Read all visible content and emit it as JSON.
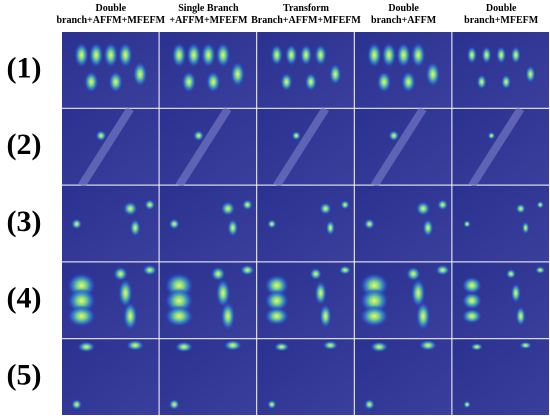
{
  "figure": {
    "columns": [
      [
        "Double",
        "branch+AFFM+MFEFM"
      ],
      [
        "Single Branch",
        "+AFFM+MFEFM"
      ],
      [
        "Transform",
        "Branch+AFFM+MFEFM"
      ],
      [
        "Double",
        "branch+AFFM"
      ],
      [
        "Double",
        "branch+MFEFM"
      ]
    ],
    "rows": [
      "(1)",
      "(2)",
      "(3)",
      "(4)",
      "(5)"
    ]
  }
}
